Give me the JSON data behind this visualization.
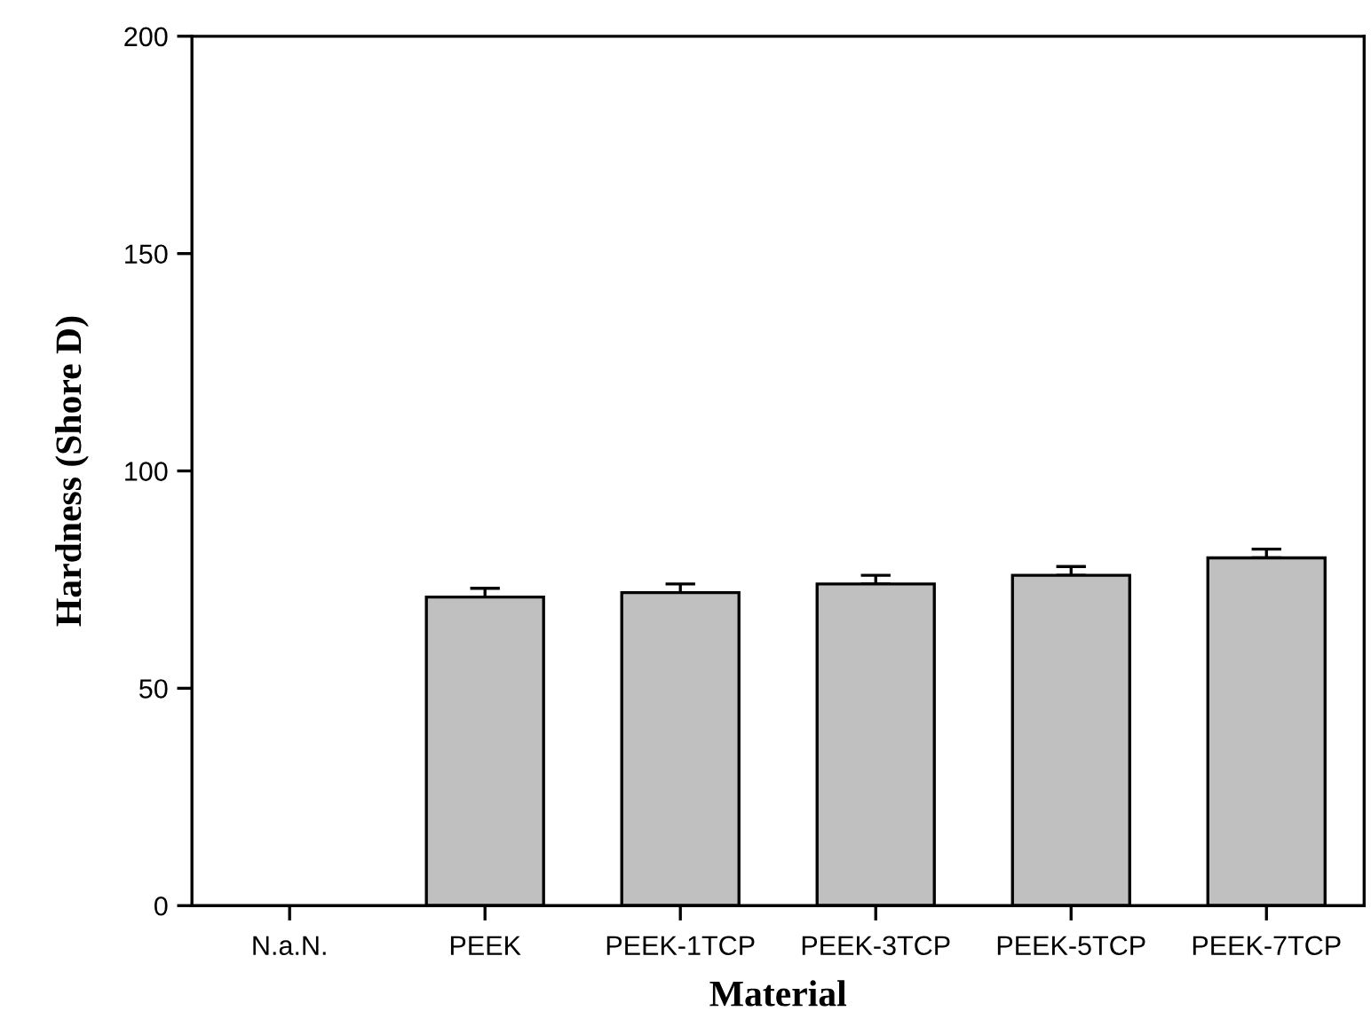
{
  "chart_data": {
    "type": "bar",
    "xlabel": "Material",
    "ylabel": "Hardness (Shore D)",
    "categories": [
      "N.a.N.",
      "PEEK",
      "PEEK-1TCP",
      "PEEK-3TCP",
      "PEEK-5TCP",
      "PEEK-7TCP"
    ],
    "values": [
      null,
      71,
      72,
      74,
      76,
      80
    ],
    "errors": [
      null,
      2,
      2,
      2,
      2,
      2
    ],
    "color": "#c0c0c0",
    "ylim": [
      0,
      200
    ],
    "yticks": [
      0,
      50,
      100,
      150,
      200
    ],
    "grid": false,
    "legend": false
  }
}
